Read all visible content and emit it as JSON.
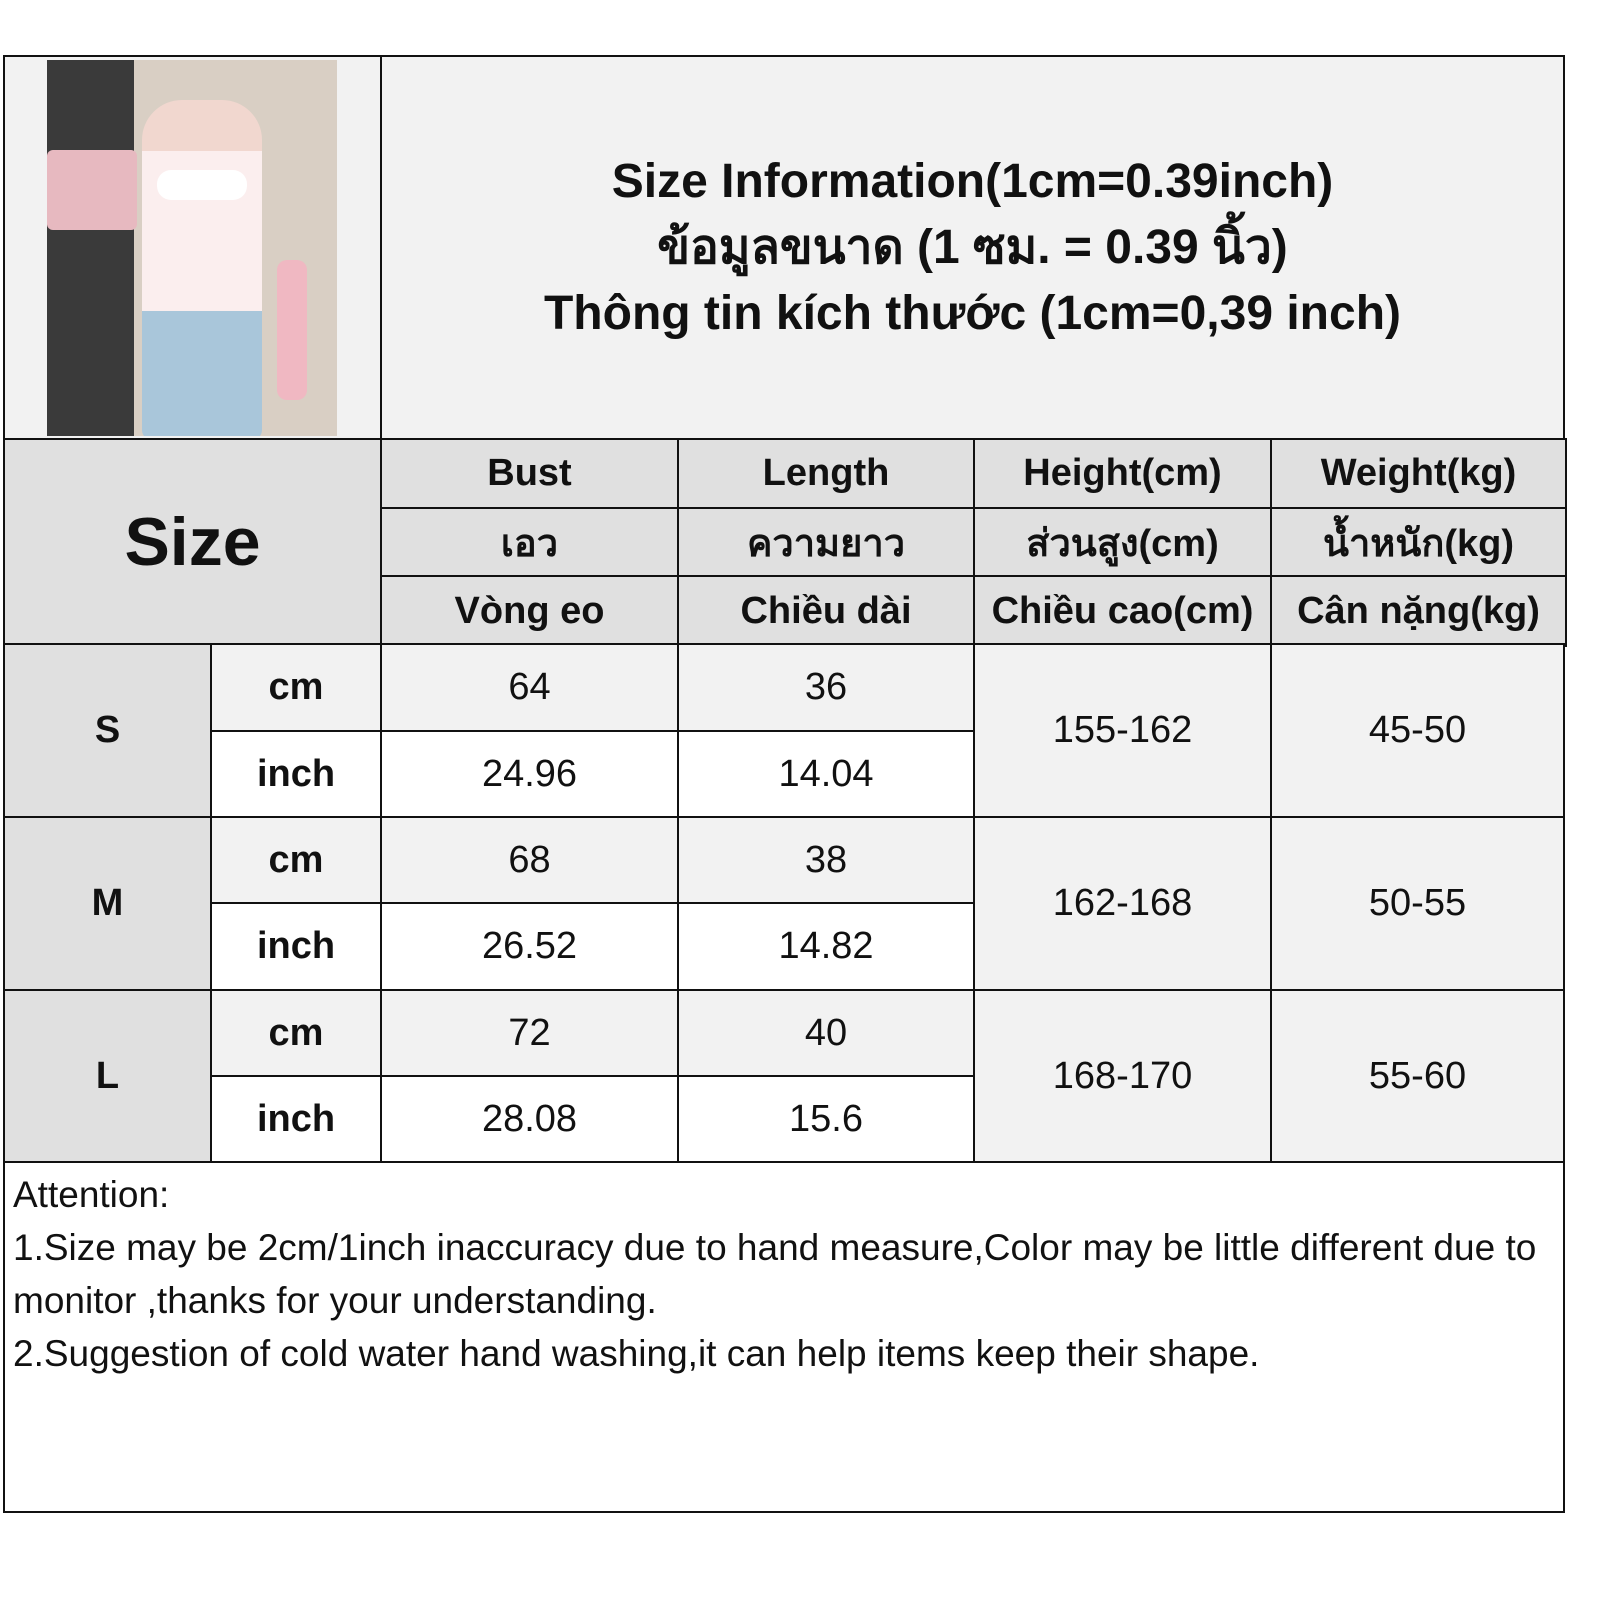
{
  "title": {
    "line1": "Size Information(1cm=0.39inch)",
    "line2": "ข้อมูลขนาด (1 ซม. = 0.39 นิ้ว)",
    "line3": "Thông tin kích thước (1cm=0,39 inch)"
  },
  "photo": {
    "description_icon": "product-photo"
  },
  "table": {
    "size_label": "Size",
    "columns": [
      {
        "en": "Bust",
        "th": "เอว",
        "vi": "Vòng eo"
      },
      {
        "en": "Length",
        "th": "ความยาว",
        "vi": "Chiều dài"
      },
      {
        "en": "Height(cm)",
        "th": "ส่วนสูง(cm)",
        "vi": "Chiều cao(cm)"
      },
      {
        "en": "Weight(kg)",
        "th": "น้ำหนัก(kg)",
        "vi": "Cân nặng(kg)"
      }
    ],
    "rows": [
      {
        "size": "S",
        "cm_label": "cm",
        "inch_label": "inch",
        "bust_cm": "64",
        "length_cm": "36",
        "bust_inch": "24.96",
        "length_inch": "14.04",
        "height": "155-162",
        "weight": "45-50"
      },
      {
        "size": "M",
        "cm_label": "cm",
        "inch_label": "inch",
        "bust_cm": "68",
        "length_cm": "38",
        "bust_inch": "26.52",
        "length_inch": "14.82",
        "height": "162-168",
        "weight": "50-55"
      },
      {
        "size": "L",
        "cm_label": "cm",
        "inch_label": "inch",
        "bust_cm": "72",
        "length_cm": "40",
        "bust_inch": "28.08",
        "length_inch": "15.6",
        "height": "168-170",
        "weight": "55-60"
      }
    ]
  },
  "notes": {
    "heading": "Attention:",
    "line1": "1.Size may be 2cm/1inch inaccuracy due to hand measure,Color may be little different due to monitor ,thanks for your understanding.",
    "line2": "2.Suggestion of cold water hand washing,it can help items keep their shape."
  }
}
